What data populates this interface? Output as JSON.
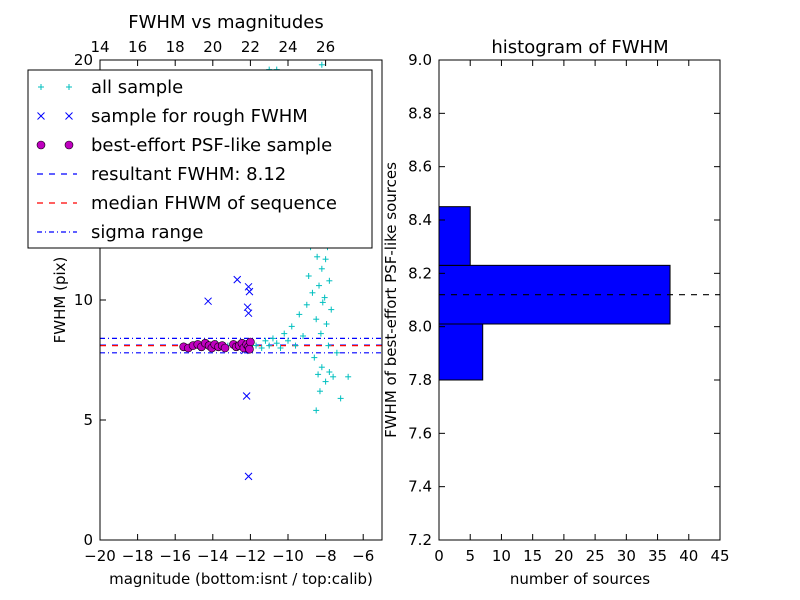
{
  "chart_data": [
    {
      "type": "scatter",
      "title": "FWHM vs magnitudes",
      "xlabel": "magnitude (bottom:isnt / top:calib)",
      "ylabel": "FWHM (pix)",
      "xlim": [
        -20,
        -5
      ],
      "ylim": [
        0,
        20
      ],
      "xticks": [
        "−20",
        "−18",
        "−16",
        "−14",
        "−12",
        "−10",
        "−8",
        "−6"
      ],
      "xtick_values": [
        -20,
        -18,
        -16,
        -14,
        -12,
        -10,
        -8,
        -6
      ],
      "yticks": [
        "0",
        "5",
        "10",
        "15",
        "20"
      ],
      "ytick_values": [
        0,
        5,
        10,
        15,
        20
      ],
      "top_axis": {
        "ticks": [
          "14",
          "16",
          "18",
          "20",
          "22",
          "24",
          "26"
        ],
        "values": [
          14,
          16,
          18,
          20,
          22,
          24,
          26
        ],
        "offset": 34
      },
      "series": [
        {
          "name": "all sample",
          "marker": "plus",
          "color": "#00bfbf",
          "points": [
            [
              -15.6,
              8.05
            ],
            [
              -15.3,
              8.0
            ],
            [
              -15.0,
              8.1
            ],
            [
              -14.7,
              8.0
            ],
            [
              -14.4,
              8.15
            ],
            [
              -14.1,
              8.1
            ],
            [
              -13.8,
              8.2
            ],
            [
              -13.5,
              8.05
            ],
            [
              -13.2,
              8.1
            ],
            [
              -12.9,
              8.05
            ],
            [
              -12.6,
              8.15
            ],
            [
              -12.3,
              8.0
            ],
            [
              -12.0,
              8.2
            ],
            [
              -11.7,
              8.1
            ],
            [
              -11.4,
              8.0
            ],
            [
              -11.2,
              8.3
            ],
            [
              -11.0,
              8.1
            ],
            [
              -10.8,
              8.4
            ],
            [
              -10.6,
              8.2
            ],
            [
              -10.4,
              8.0
            ],
            [
              -10.2,
              8.6
            ],
            [
              -10.0,
              8.3
            ],
            [
              -9.8,
              8.9
            ],
            [
              -9.6,
              8.1
            ],
            [
              -9.4,
              9.4
            ],
            [
              -9.2,
              8.5
            ],
            [
              -9.0,
              9.8
            ],
            [
              -8.9,
              11.0
            ],
            [
              -8.8,
              12.2
            ],
            [
              -8.7,
              10.3
            ],
            [
              -8.6,
              13.5
            ],
            [
              -8.5,
              9.2
            ],
            [
              -8.45,
              11.8
            ],
            [
              -8.4,
              14.6
            ],
            [
              -8.35,
              10.6
            ],
            [
              -8.3,
              12.7
            ],
            [
              -8.25,
              8.6
            ],
            [
              -8.2,
              11.3
            ],
            [
              -8.15,
              9.9
            ],
            [
              -8.1,
              13.1
            ],
            [
              -8.05,
              10.1
            ],
            [
              -8.0,
              11.7
            ],
            [
              -7.95,
              9.0
            ],
            [
              -7.9,
              12.2
            ],
            [
              -7.85,
              8.1
            ],
            [
              -7.8,
              10.8
            ],
            [
              -7.75,
              13.6
            ],
            [
              -7.7,
              9.6
            ],
            [
              -8.6,
              7.6
            ],
            [
              -8.4,
              6.9
            ],
            [
              -8.2,
              7.2
            ],
            [
              -8.0,
              6.6
            ],
            [
              -7.8,
              7.0
            ],
            [
              -8.3,
              6.2
            ],
            [
              -7.6,
              6.8
            ],
            [
              -7.2,
              5.9
            ],
            [
              -8.5,
              5.4
            ],
            [
              -6.8,
              6.8
            ],
            [
              -7.4,
              7.8
            ],
            [
              -9.1,
              12.8
            ],
            [
              -8.8,
              15.8
            ],
            [
              -8.1,
              16.6
            ],
            [
              -8.6,
              17.4
            ],
            [
              -9.4,
              15.1
            ],
            [
              -10.2,
              16.3
            ],
            [
              -9.8,
              17.9
            ],
            [
              -10.6,
              19.6
            ],
            [
              -8.4,
              18.8
            ],
            [
              -9.3,
              19.2
            ],
            [
              -8.2,
              19.8
            ],
            [
              -11.0,
              19.6
            ],
            [
              -10.5,
              14.0
            ],
            [
              -9.6,
              13.2
            ],
            [
              -11.3,
              13.5
            ],
            [
              -9.0,
              14.4
            ]
          ]
        },
        {
          "name": "sample for rough FWHM",
          "marker": "x",
          "color": "#0000ff",
          "points": [
            [
              -14.25,
              9.95
            ],
            [
              -12.7,
              10.85
            ],
            [
              -12.1,
              10.55
            ],
            [
              -12.05,
              10.35
            ],
            [
              -12.15,
              9.7
            ],
            [
              -12.1,
              9.45
            ],
            [
              -12.2,
              6.0
            ],
            [
              -12.1,
              2.65
            ],
            [
              -12.35,
              8.1
            ],
            [
              -12.3,
              7.9
            ]
          ]
        },
        {
          "name": "best-effort PSF-like sample",
          "marker": "circle",
          "color": "#bf00bf",
          "points": [
            [
              -15.55,
              8.05
            ],
            [
              -15.3,
              8.0
            ],
            [
              -15.05,
              8.1
            ],
            [
              -14.8,
              8.15
            ],
            [
              -14.6,
              8.05
            ],
            [
              -14.4,
              8.2
            ],
            [
              -14.2,
              8.1
            ],
            [
              -14.05,
              8.0
            ],
            [
              -13.9,
              8.15
            ],
            [
              -13.7,
              8.05
            ],
            [
              -13.5,
              8.1
            ],
            [
              -13.35,
              8.0
            ],
            [
              -12.9,
              8.15
            ],
            [
              -12.75,
              8.05
            ],
            [
              -12.6,
              8.1
            ],
            [
              -12.45,
              8.2
            ],
            [
              -12.35,
              8.0
            ],
            [
              -12.2,
              8.15
            ],
            [
              -12.1,
              8.05
            ],
            [
              -12.0,
              8.25
            ],
            [
              -12.05,
              7.95
            ]
          ]
        }
      ],
      "lines": [
        {
          "name": "resultant FWHM: 8.12",
          "y": 8.12,
          "style": "dashed",
          "color": "#0000ff"
        },
        {
          "name": "median FHWM of sequence",
          "y": 8.1,
          "style": "dashed",
          "color": "#ff0000"
        },
        {
          "name": "sigma range",
          "y": 8.4,
          "style": "dashdot",
          "color": "#0000ff"
        },
        {
          "name": "",
          "y": 7.8,
          "style": "dashdot",
          "color": "#0000ff"
        }
      ],
      "legend": {
        "placement": "upper-left",
        "entries": [
          "all sample",
          "sample for rough FWHM",
          "best-effort PSF-like sample",
          "resultant FWHM: 8.12",
          "median FHWM of sequence",
          "sigma range"
        ]
      }
    },
    {
      "type": "bar",
      "orientation": "horizontal",
      "title": "histogram of FWHM",
      "xlabel": "number of sources",
      "ylabel": "FWHM of best-effort PSF-like sources",
      "xlim": [
        0,
        45
      ],
      "ylim": [
        7.2,
        9.0
      ],
      "xticks": [
        "0",
        "5",
        "10",
        "15",
        "20",
        "25",
        "30",
        "35",
        "40",
        "45"
      ],
      "xtick_values": [
        0,
        5,
        10,
        15,
        20,
        25,
        30,
        35,
        40,
        45
      ],
      "yticks": [
        "7.2",
        "7.4",
        "7.6",
        "7.8",
        "8.0",
        "8.2",
        "8.4",
        "8.6",
        "8.8",
        "9.0"
      ],
      "ytick_values": [
        7.2,
        7.4,
        7.6,
        7.8,
        8.0,
        8.2,
        8.4,
        8.6,
        8.8,
        9.0
      ],
      "bins": [
        {
          "lo": 7.8,
          "hi": 8.01,
          "count": 7
        },
        {
          "lo": 8.01,
          "hi": 8.23,
          "count": 37
        },
        {
          "lo": 8.23,
          "hi": 8.45,
          "count": 5
        }
      ],
      "bar_color": "#0000ff",
      "reference_line": {
        "y": 8.12,
        "style": "dashed",
        "color": "#000000"
      }
    }
  ]
}
